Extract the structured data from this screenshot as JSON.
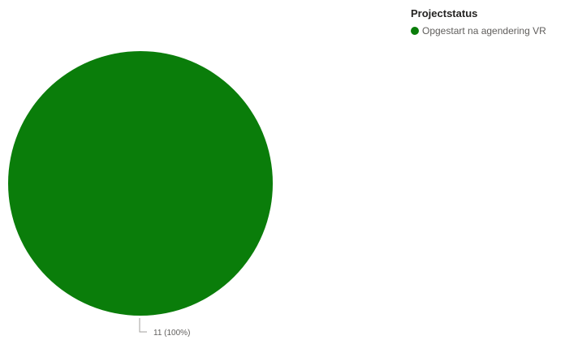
{
  "chart_data": {
    "type": "pie",
    "legend_title": "Projectstatus",
    "legend_position": "top-right",
    "slices": [
      {
        "name": "Opgestart na agendering VR",
        "value": 11,
        "percent": 100,
        "data_label": "11 (100%)",
        "color": "#0a7d0a"
      }
    ]
  }
}
